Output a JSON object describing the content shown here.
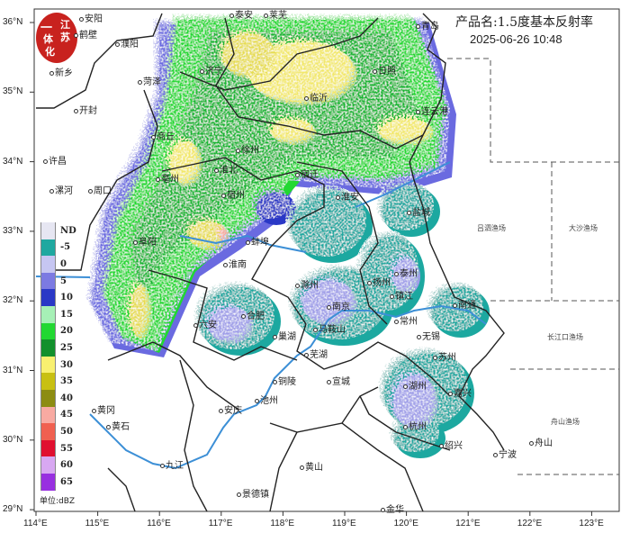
{
  "header": {
    "title": "产品名:1.5度基本反射率",
    "timestamp": "2025-06-26 10:48"
  },
  "logo": {
    "text": "江苏一体化",
    "color": "#c8221e"
  },
  "legend": {
    "unit": "单位:dBZ",
    "items": [
      {
        "label": "ND",
        "color": "#e6e6f2"
      },
      {
        "label": "-5",
        "color": "#1fa8a0"
      },
      {
        "label": "0",
        "color": "#c6c6f2"
      },
      {
        "label": "5",
        "color": "#7c7ae2"
      },
      {
        "label": "10",
        "color": "#2a38c6"
      },
      {
        "label": "15",
        "color": "#a6f0b6"
      },
      {
        "label": "20",
        "color": "#22d832"
      },
      {
        "label": "25",
        "color": "#12902c"
      },
      {
        "label": "30",
        "color": "#f8f070"
      },
      {
        "label": "35",
        "color": "#c8c012"
      },
      {
        "label": "40",
        "color": "#8c8c12"
      },
      {
        "label": "45",
        "color": "#f8aaa2"
      },
      {
        "label": "50",
        "color": "#f06050"
      },
      {
        "label": "55",
        "color": "#e01030"
      },
      {
        "label": "60",
        "color": "#d8a8f2"
      },
      {
        "label": "65",
        "color": "#9830e0"
      }
    ]
  },
  "axes": {
    "lon_ticks": [
      "114°E",
      "115°E",
      "116°E",
      "117°E",
      "118°E",
      "119°E",
      "120°E",
      "121°E",
      "122°E",
      "123°E"
    ],
    "lat_ticks": [
      "36°N",
      "35°N",
      "34°N",
      "33°N",
      "32°N",
      "31°N",
      "30°N",
      "29°N"
    ]
  },
  "cities": [
    "安阳",
    "鹤壁",
    "濮阳",
    "新乡",
    "菏泽",
    "开封",
    "济宁",
    "泰安",
    "莱芜",
    "青岛",
    "日照",
    "临沂",
    "连云港",
    "商丘",
    "亳州",
    "淮北",
    "宿州",
    "徐州",
    "宿迁",
    "淮安",
    "盐城",
    "许昌",
    "漯河",
    "周口",
    "阜阳",
    "蚌埠",
    "淮南",
    "六安",
    "合肥",
    "滁州",
    "南京",
    "扬州",
    "镇江",
    "泰州",
    "南通",
    "常州",
    "无锡",
    "马鞍山",
    "巢湖",
    "芜湖",
    "铜陵",
    "宣城",
    "池州",
    "安庆",
    "黄冈",
    "黄石",
    "九江",
    "黄山",
    "景德镇",
    "苏州",
    "湖州",
    "嘉兴",
    "杭州",
    "绍兴",
    "宁波",
    "舟山",
    "金华"
  ],
  "fishing_areas": [
    "吕泗渔场",
    "大沙渔场",
    "长江口渔场",
    "舟山渔场"
  ]
}
